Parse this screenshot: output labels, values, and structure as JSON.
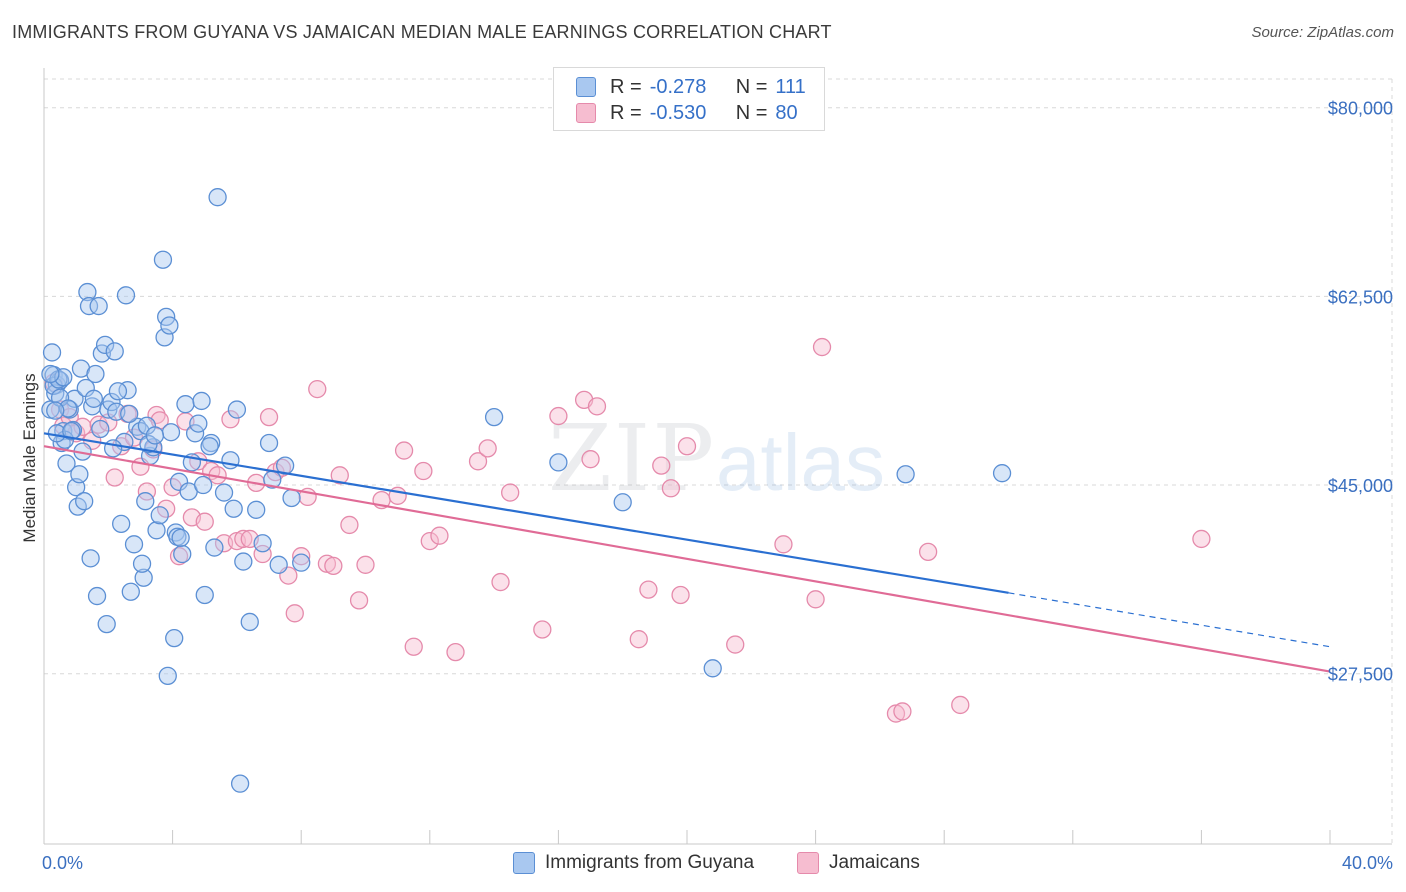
{
  "header": {
    "title": "IMMIGRANTS FROM GUYANA VS JAMAICAN MEDIAN MALE EARNINGS CORRELATION CHART",
    "source": "Source: ZipAtlas.com"
  },
  "watermark": {
    "zip": "ZIP",
    "atlas": "atlas"
  },
  "colors": {
    "guyana_fill": "#a9c8f0",
    "guyana_stroke": "#5b8fd4",
    "guyana_line": "#2a6fd1",
    "jamaica_fill": "#f6bdd0",
    "jamaica_stroke": "#e58aab",
    "jamaica_line": "#e06b96",
    "axis_text": "#3a6fc0",
    "grid": "#d8d8d8"
  },
  "legend": {
    "rows": [
      {
        "r_label": "R =",
        "r_value": "-0.278",
        "n_label": "N =",
        "n_value": "111"
      },
      {
        "r_label": "R =",
        "r_value": "-0.530",
        "n_label": "N =",
        "n_value": "80"
      }
    ]
  },
  "bottom_legend": {
    "guyana": "Immigrants from Guyana",
    "jamaica": "Jamaicans"
  },
  "chart_data": {
    "type": "scatter",
    "title": "IMMIGRANTS FROM GUYANA VS JAMAICAN MEDIAN MALE EARNINGS CORRELATION CHART",
    "xlabel": "",
    "ylabel": "Median Male Earnings",
    "xlim": [
      0,
      40
    ],
    "ylim": [
      13000,
      83500
    ],
    "x_tick_labels": [
      "0.0%",
      "40.0%"
    ],
    "y_ticks": [
      27500,
      45000,
      62500,
      80000
    ],
    "y_tick_labels": [
      "$27,500",
      "$45,000",
      "$62,500",
      "$80,000"
    ],
    "grid": true,
    "legend_position": "top-center",
    "series": [
      {
        "name": "Immigrants from Guyana",
        "r": -0.278,
        "n": 111,
        "trend": {
          "x0": 0,
          "y0": 49800,
          "x1": 30,
          "y1": 35000,
          "dash_to_x": 40,
          "dash_to_y": 30000
        },
        "points": [
          [
            0.2,
            52000
          ],
          [
            0.3,
            55200
          ],
          [
            0.25,
            57300
          ],
          [
            0.4,
            54300
          ],
          [
            0.5,
            54700
          ],
          [
            0.35,
            53500
          ],
          [
            0.6,
            50000
          ],
          [
            0.55,
            48900
          ],
          [
            0.7,
            47000
          ],
          [
            0.8,
            52000
          ],
          [
            0.9,
            50100
          ],
          [
            0.65,
            49200
          ],
          [
            0.95,
            53000
          ],
          [
            1.0,
            44800
          ],
          [
            1.05,
            43000
          ],
          [
            1.1,
            46000
          ],
          [
            1.2,
            48100
          ],
          [
            1.3,
            54000
          ],
          [
            1.15,
            55800
          ],
          [
            1.35,
            62900
          ],
          [
            1.4,
            61600
          ],
          [
            1.5,
            52300
          ],
          [
            1.6,
            55300
          ],
          [
            1.7,
            61600
          ],
          [
            1.8,
            57200
          ],
          [
            1.9,
            58000
          ],
          [
            2.0,
            52000
          ],
          [
            2.1,
            52700
          ],
          [
            2.2,
            57400
          ],
          [
            1.25,
            43500
          ],
          [
            1.45,
            38200
          ],
          [
            1.65,
            34700
          ],
          [
            1.95,
            32100
          ],
          [
            2.4,
            41400
          ],
          [
            2.5,
            49000
          ],
          [
            2.6,
            53800
          ],
          [
            2.3,
            53700
          ],
          [
            2.55,
            62600
          ],
          [
            2.7,
            35100
          ],
          [
            2.8,
            39500
          ],
          [
            2.9,
            50400
          ],
          [
            3.0,
            50000
          ],
          [
            3.1,
            36400
          ],
          [
            3.05,
            37700
          ],
          [
            3.2,
            50500
          ],
          [
            3.3,
            47700
          ],
          [
            3.4,
            48500
          ],
          [
            3.5,
            40800
          ],
          [
            3.6,
            42200
          ],
          [
            3.75,
            58700
          ],
          [
            3.8,
            60600
          ],
          [
            3.9,
            59800
          ],
          [
            3.7,
            65900
          ],
          [
            3.85,
            27300
          ],
          [
            3.95,
            49900
          ],
          [
            4.05,
            30800
          ],
          [
            4.1,
            40600
          ],
          [
            4.2,
            45300
          ],
          [
            4.3,
            38600
          ],
          [
            4.15,
            40200
          ],
          [
            4.4,
            52500
          ],
          [
            4.5,
            44400
          ],
          [
            4.6,
            47100
          ],
          [
            4.7,
            49800
          ],
          [
            4.8,
            50700
          ],
          [
            4.9,
            52800
          ],
          [
            5.0,
            34800
          ],
          [
            5.2,
            48900
          ],
          [
            5.3,
            39200
          ],
          [
            5.4,
            71700
          ],
          [
            5.6,
            44300
          ],
          [
            5.8,
            47300
          ],
          [
            5.9,
            42800
          ],
          [
            6.0,
            52000
          ],
          [
            6.1,
            17300
          ],
          [
            6.2,
            37900
          ],
          [
            6.4,
            32300
          ],
          [
            6.6,
            42700
          ],
          [
            6.8,
            39600
          ],
          [
            7.0,
            48900
          ],
          [
            7.1,
            45500
          ],
          [
            7.3,
            37600
          ],
          [
            7.5,
            46800
          ],
          [
            7.7,
            43800
          ],
          [
            8.0,
            37800
          ],
          [
            0.4,
            49800
          ],
          [
            0.3,
            54200
          ],
          [
            0.45,
            54800
          ],
          [
            0.5,
            53100
          ],
          [
            0.6,
            55000
          ],
          [
            0.75,
            52100
          ],
          [
            0.85,
            50000
          ],
          [
            2.25,
            51800
          ],
          [
            3.25,
            48800
          ],
          [
            14.0,
            51300
          ],
          [
            16.0,
            47100
          ],
          [
            18.0,
            43400
          ],
          [
            20.8,
            28000
          ],
          [
            26.8,
            46000
          ],
          [
            29.8,
            46100
          ],
          [
            0.2,
            55300
          ],
          [
            0.35,
            51900
          ],
          [
            1.55,
            53000
          ],
          [
            1.75,
            50200
          ],
          [
            2.15,
            48400
          ],
          [
            2.65,
            51600
          ],
          [
            3.15,
            43500
          ],
          [
            3.45,
            49600
          ],
          [
            4.25,
            40100
          ],
          [
            4.95,
            45000
          ],
          [
            5.15,
            48600
          ]
        ]
      },
      {
        "name": "Jamaicans",
        "r": -0.53,
        "n": 80,
        "trend": {
          "x0": 0,
          "y0": 48600,
          "x1": 40,
          "y1": 27700
        },
        "points": [
          [
            0.3,
            54500
          ],
          [
            0.5,
            52000
          ],
          [
            0.6,
            50500
          ],
          [
            0.8,
            51300
          ],
          [
            1.0,
            49800
          ],
          [
            1.2,
            50400
          ],
          [
            1.5,
            49100
          ],
          [
            1.7,
            50600
          ],
          [
            2.0,
            50800
          ],
          [
            2.2,
            45700
          ],
          [
            2.4,
            48600
          ],
          [
            2.6,
            51600
          ],
          [
            2.8,
            49400
          ],
          [
            3.0,
            46700
          ],
          [
            3.2,
            44400
          ],
          [
            3.4,
            48300
          ],
          [
            3.5,
            51500
          ],
          [
            3.6,
            51000
          ],
          [
            3.8,
            42800
          ],
          [
            4.0,
            44800
          ],
          [
            4.2,
            38400
          ],
          [
            4.4,
            50900
          ],
          [
            4.6,
            42000
          ],
          [
            4.8,
            47200
          ],
          [
            5.0,
            41600
          ],
          [
            5.2,
            46300
          ],
          [
            5.4,
            45900
          ],
          [
            5.6,
            39600
          ],
          [
            5.8,
            51100
          ],
          [
            6.0,
            39800
          ],
          [
            6.2,
            40000
          ],
          [
            6.4,
            40000
          ],
          [
            6.6,
            45200
          ],
          [
            6.8,
            38600
          ],
          [
            7.0,
            51300
          ],
          [
            7.2,
            46200
          ],
          [
            7.4,
            46600
          ],
          [
            7.6,
            36600
          ],
          [
            7.8,
            33100
          ],
          [
            8.0,
            38400
          ],
          [
            8.2,
            43900
          ],
          [
            8.5,
            53900
          ],
          [
            8.8,
            37700
          ],
          [
            9.0,
            37500
          ],
          [
            9.2,
            45900
          ],
          [
            9.5,
            41300
          ],
          [
            9.8,
            34300
          ],
          [
            10.0,
            37600
          ],
          [
            10.5,
            43600
          ],
          [
            11.0,
            44000
          ],
          [
            11.2,
            48200
          ],
          [
            11.5,
            30000
          ],
          [
            11.8,
            46300
          ],
          [
            12.0,
            39800
          ],
          [
            12.3,
            40300
          ],
          [
            12.8,
            29500
          ],
          [
            13.5,
            47200
          ],
          [
            13.8,
            48400
          ],
          [
            14.2,
            36000
          ],
          [
            14.5,
            44300
          ],
          [
            15.5,
            31600
          ],
          [
            16.0,
            51400
          ],
          [
            16.8,
            52900
          ],
          [
            17.0,
            47400
          ],
          [
            17.2,
            52300
          ],
          [
            18.5,
            30700
          ],
          [
            18.8,
            35300
          ],
          [
            19.2,
            46800
          ],
          [
            19.5,
            44700
          ],
          [
            19.8,
            34800
          ],
          [
            20.0,
            48600
          ],
          [
            21.5,
            30200
          ],
          [
            23.0,
            39500
          ],
          [
            24.0,
            34400
          ],
          [
            24.2,
            57800
          ],
          [
            26.5,
            23800
          ],
          [
            26.7,
            24000
          ],
          [
            27.5,
            38800
          ],
          [
            28.5,
            24600
          ],
          [
            36.0,
            40000
          ]
        ]
      }
    ]
  }
}
